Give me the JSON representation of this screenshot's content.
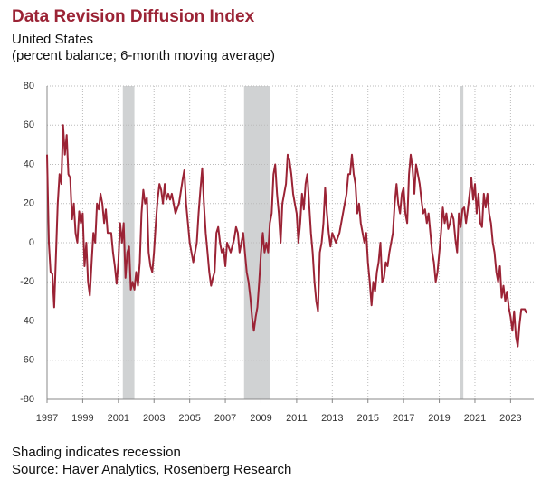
{
  "chart_data": {
    "type": "line",
    "title": "Data Revision Diffusion Index",
    "subtitle": [
      "United States",
      "(percent balance; 6-month moving average)"
    ],
    "notes": [
      "Shading indicates recession",
      "Source: Haver Analytics, Rosenberg Research"
    ],
    "xlim": [
      1997,
      2024.3
    ],
    "ylim": [
      -80,
      80
    ],
    "xticks": [
      1997,
      1999,
      2001,
      2003,
      2005,
      2007,
      2009,
      2011,
      2013,
      2015,
      2017,
      2019,
      2021,
      2023
    ],
    "yticks": [
      -80,
      -60,
      -40,
      -20,
      0,
      20,
      40,
      60,
      80
    ],
    "grid": true,
    "recessions": [
      [
        2001.25,
        2001.9
      ],
      [
        2008.05,
        2009.5
      ],
      [
        2020.15,
        2020.35
      ]
    ],
    "recession_color": "#d0d2d3",
    "x": [
      1997.0,
      1997.1,
      1997.2,
      1997.3,
      1997.4,
      1997.6,
      1997.7,
      1997.8,
      1997.9,
      1998.0,
      1998.1,
      1998.2,
      1998.3,
      1998.4,
      1998.5,
      1998.6,
      1998.7,
      1998.8,
      1998.9,
      1999.0,
      1999.1,
      1999.2,
      1999.3,
      1999.4,
      1999.5,
      1999.6,
      1999.7,
      1999.8,
      1999.9,
      2000.0,
      2000.1,
      2000.2,
      2000.3,
      2000.4,
      2000.5,
      2000.6,
      2000.7,
      2000.8,
      2000.9,
      2001.0,
      2001.1,
      2001.2,
      2001.3,
      2001.4,
      2001.5,
      2001.6,
      2001.7,
      2001.8,
      2001.9,
      2002.0,
      2002.1,
      2002.2,
      2002.3,
      2002.4,
      2002.5,
      2002.6,
      2002.7,
      2002.8,
      2002.9,
      2003.0,
      2003.1,
      2003.2,
      2003.3,
      2003.4,
      2003.5,
      2003.6,
      2003.7,
      2003.8,
      2003.9,
      2004.0,
      2004.2,
      2004.4,
      2004.6,
      2004.7,
      2004.8,
      2004.9,
      2005.0,
      2005.2,
      2005.4,
      2005.5,
      2005.6,
      2005.7,
      2005.8,
      2005.9,
      2006.0,
      2006.1,
      2006.2,
      2006.3,
      2006.4,
      2006.5,
      2006.6,
      2006.7,
      2006.8,
      2006.9,
      2007.0,
      2007.1,
      2007.3,
      2007.5,
      2007.6,
      2007.7,
      2007.8,
      2007.9,
      2008.0,
      2008.1,
      2008.2,
      2008.3,
      2008.4,
      2008.5,
      2008.6,
      2008.7,
      2008.8,
      2008.9,
      2009.0,
      2009.1,
      2009.2,
      2009.3,
      2009.4,
      2009.5,
      2009.6,
      2009.7,
      2009.8,
      2009.9,
      2010.0,
      2010.1,
      2010.2,
      2010.4,
      2010.5,
      2010.6,
      2010.7,
      2010.8,
      2010.9,
      2011.0,
      2011.1,
      2011.2,
      2011.3,
      2011.4,
      2011.5,
      2011.6,
      2011.7,
      2011.8,
      2011.9,
      2012.0,
      2012.1,
      2012.2,
      2012.3,
      2012.4,
      2012.5,
      2012.6,
      2012.7,
      2012.8,
      2012.9,
      2013.0,
      2013.2,
      2013.4,
      2013.6,
      2013.8,
      2013.9,
      2014.0,
      2014.1,
      2014.2,
      2014.3,
      2014.4,
      2014.5,
      2014.6,
      2014.7,
      2014.8,
      2014.9,
      2015.0,
      2015.1,
      2015.2,
      2015.3,
      2015.4,
      2015.5,
      2015.6,
      2015.7,
      2015.8,
      2015.9,
      2016.0,
      2016.1,
      2016.2,
      2016.4,
      2016.5,
      2016.6,
      2016.7,
      2016.8,
      2016.9,
      2017.0,
      2017.1,
      2017.2,
      2017.3,
      2017.4,
      2017.5,
      2017.6,
      2017.7,
      2017.8,
      2017.9,
      2018.0,
      2018.1,
      2018.2,
      2018.3,
      2018.4,
      2018.5,
      2018.6,
      2018.7,
      2018.8,
      2018.9,
      2019.0,
      2019.1,
      2019.2,
      2019.3,
      2019.4,
      2019.5,
      2019.6,
      2019.7,
      2019.8,
      2019.9,
      2020.0,
      2020.1,
      2020.2,
      2020.3,
      2020.4,
      2020.5,
      2020.6,
      2020.7,
      2020.8,
      2020.9,
      2021.0,
      2021.1,
      2021.2,
      2021.3,
      2021.4,
      2021.5,
      2021.6,
      2021.7,
      2021.8,
      2021.9,
      2022.0,
      2022.1,
      2022.2,
      2022.3,
      2022.4,
      2022.5,
      2022.6,
      2022.7,
      2022.8,
      2022.9,
      2023.0,
      2023.1,
      2023.2,
      2023.3,
      2023.4,
      2023.5,
      2023.6,
      2023.7,
      2023.8,
      2023.9
    ],
    "series": [
      {
        "color": "#9b2335",
        "values": [
          45,
          0,
          -15,
          -16,
          -33,
          20,
          35,
          30,
          60,
          45,
          55,
          35,
          33,
          12,
          20,
          5,
          0,
          16,
          10,
          15,
          -12,
          0,
          -20,
          -27,
          -10,
          5,
          0,
          20,
          17,
          25,
          20,
          10,
          17,
          5,
          5,
          5,
          -5,
          -12,
          -21,
          -10,
          10,
          0,
          10,
          -18,
          -5,
          -2,
          -24,
          -20,
          -24,
          -15,
          -22,
          -10,
          15,
          27,
          20,
          23,
          -5,
          -12,
          -15,
          -5,
          10,
          22,
          30,
          27,
          20,
          30,
          22,
          25,
          22,
          25,
          15,
          20,
          32,
          37,
          20,
          10,
          0,
          -10,
          0,
          15,
          27,
          38,
          20,
          5,
          -5,
          -15,
          -22,
          -18,
          -15,
          5,
          8,
          0,
          -5,
          -3,
          -12,
          0,
          -5,
          2,
          8,
          5,
          -5,
          0,
          5,
          -5,
          -15,
          -20,
          -28,
          -38,
          -45,
          -38,
          -33,
          -20,
          -5,
          5,
          -5,
          0,
          -5,
          10,
          15,
          35,
          40,
          25,
          15,
          0,
          20,
          30,
          45,
          42,
          35,
          25,
          20,
          15,
          0,
          10,
          25,
          17,
          30,
          35,
          20,
          5,
          -5,
          -20,
          -30,
          -35,
          -5,
          0,
          10,
          28,
          15,
          5,
          -2,
          5,
          0,
          5,
          15,
          25,
          35,
          35,
          45,
          35,
          30,
          15,
          20,
          10,
          5,
          0,
          5,
          -10,
          -20,
          -32,
          -20,
          -25,
          -15,
          -10,
          0,
          -20,
          -18,
          -10,
          -12,
          -5,
          5,
          20,
          30,
          20,
          15,
          25,
          28,
          15,
          10,
          35,
          45,
          38,
          25,
          40,
          35,
          30,
          22,
          15,
          17,
          10,
          15,
          5,
          -5,
          -10,
          -20,
          -15,
          -5,
          5,
          18,
          10,
          15,
          7,
          10,
          15,
          12,
          2,
          -5,
          15,
          8,
          17,
          18,
          10,
          17,
          25,
          33,
          22,
          30,
          15,
          25,
          10,
          8,
          25,
          18,
          25,
          15,
          10,
          0,
          -5,
          -15,
          -20,
          -12,
          -28,
          -22,
          -30,
          -25,
          -33,
          -38,
          -45,
          -35,
          -48,
          -53,
          -42,
          -34,
          -34,
          -34,
          -36
        ]
      }
    ]
  }
}
